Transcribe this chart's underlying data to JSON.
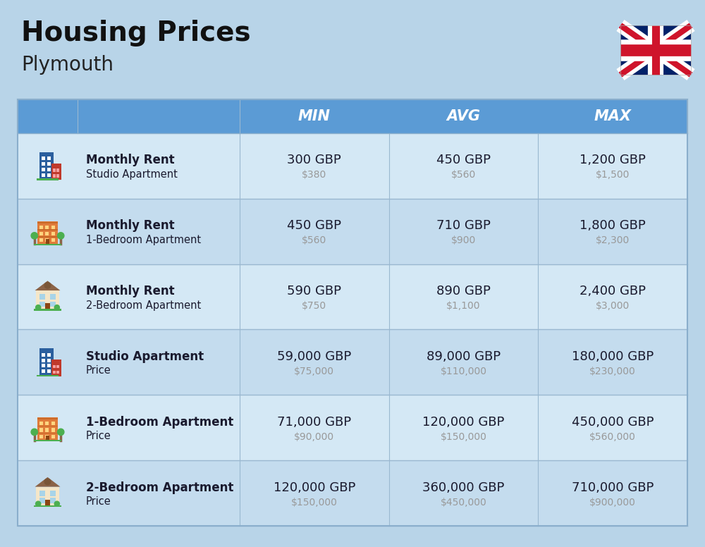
{
  "title": "Housing Prices",
  "subtitle": "Plymouth",
  "bg_color": "#b8d4e8",
  "header_bg": "#5b9bd5",
  "header_first_cols_bg": "#5b9bd5",
  "header_text_color": "#ffffff",
  "row_bg_even": "#d4e8f5",
  "row_bg_odd": "#c4dcee",
  "col_headers": [
    "MIN",
    "AVG",
    "MAX"
  ],
  "rows": [
    {
      "label_bold": "Monthly Rent",
      "label_sub": "Studio Apartment",
      "values": [
        [
          "300 GBP",
          "$380"
        ],
        [
          "450 GBP",
          "$560"
        ],
        [
          "1,200 GBP",
          "$1,500"
        ]
      ],
      "icon": "blue_office"
    },
    {
      "label_bold": "Monthly Rent",
      "label_sub": "1-Bedroom Apartment",
      "values": [
        [
          "450 GBP",
          "$560"
        ],
        [
          "710 GBP",
          "$900"
        ],
        [
          "1,800 GBP",
          "$2,300"
        ]
      ],
      "icon": "orange_apt"
    },
    {
      "label_bold": "Monthly Rent",
      "label_sub": "2-Bedroom Apartment",
      "values": [
        [
          "590 GBP",
          "$750"
        ],
        [
          "890 GBP",
          "$1,100"
        ],
        [
          "2,400 GBP",
          "$3,000"
        ]
      ],
      "icon": "tan_house"
    },
    {
      "label_bold": "Studio Apartment",
      "label_sub": "Price",
      "values": [
        [
          "59,000 GBP",
          "$75,000"
        ],
        [
          "89,000 GBP",
          "$110,000"
        ],
        [
          "180,000 GBP",
          "$230,000"
        ]
      ],
      "icon": "blue_office"
    },
    {
      "label_bold": "1-Bedroom Apartment",
      "label_sub": "Price",
      "values": [
        [
          "71,000 GBP",
          "$90,000"
        ],
        [
          "120,000 GBP",
          "$150,000"
        ],
        [
          "450,000 GBP",
          "$560,000"
        ]
      ],
      "icon": "orange_apt"
    },
    {
      "label_bold": "2-Bedroom Apartment",
      "label_sub": "Price",
      "values": [
        [
          "120,000 GBP",
          "$150,000"
        ],
        [
          "360,000 GBP",
          "$450,000"
        ],
        [
          "710,000 GBP",
          "$900,000"
        ]
      ],
      "icon": "tan_house"
    }
  ],
  "cell_color": "#1a1a2e",
  "usd_color": "#999999",
  "divider": "#9ab8d0",
  "table_border": "#8aaecc"
}
